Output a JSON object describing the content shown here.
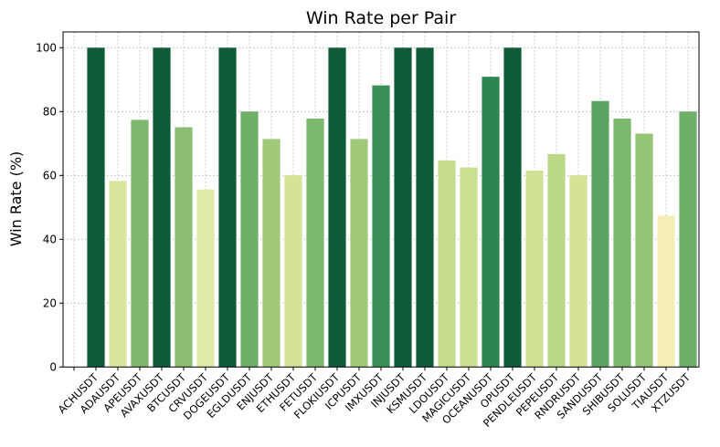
{
  "chart_data": {
    "type": "bar",
    "title": "Win Rate per Pair",
    "xlabel": "",
    "ylabel": "Win Rate (%)",
    "ylim": [
      0,
      105
    ],
    "yticks": [
      0,
      20,
      40,
      60,
      80,
      100
    ],
    "grid": true,
    "categories": [
      "ACHUSDT",
      "ADAUSDT",
      "APEUSDT",
      "AVAXUSDT",
      "BTCUSDT",
      "CRVUSDT",
      "DOGEUSDT",
      "EGLDUSDT",
      "ENJUSDT",
      "ETHUSDT",
      "FETUSDT",
      "FLOKIUSDT",
      "ICPUSDT",
      "IMXUSDT",
      "INJUSDT",
      "KSMUSDT",
      "LDOUSDT",
      "MAGICUSDT",
      "OCEANUSDT",
      "OPUSDT",
      "PENDLEUSDT",
      "PEPEUSDT",
      "RNDRUSDT",
      "SANDUSDT",
      "SHIBUSDT",
      "SOLUSDT",
      "TIAUSDT",
      "XTZUSDT"
    ],
    "values": [
      100,
      58.3,
      77.4,
      100,
      75.1,
      55.6,
      100,
      80,
      71.4,
      60,
      77.8,
      100,
      71.4,
      88.2,
      100,
      100,
      64.7,
      62.5,
      90.9,
      100,
      61.5,
      66.7,
      60,
      83.3,
      77.8,
      73.1,
      47.4,
      80
    ],
    "colormap": [
      [
        47,
        "#f6efb8"
      ],
      [
        56,
        "#e0e9a6"
      ],
      [
        60,
        "#d4e396"
      ],
      [
        66,
        "#bfda89"
      ],
      [
        72,
        "#9cc777"
      ],
      [
        78,
        "#7bb66e"
      ],
      [
        83,
        "#5ea563"
      ],
      [
        90,
        "#2e8a54"
      ],
      [
        100,
        "#105b3a"
      ]
    ]
  }
}
